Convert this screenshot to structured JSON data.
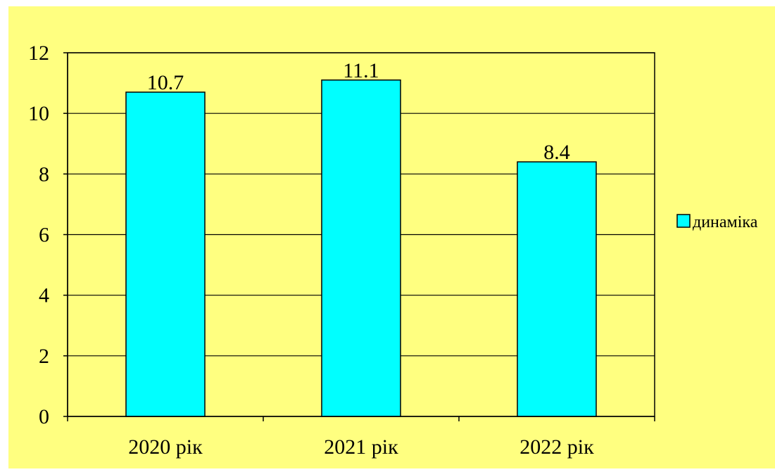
{
  "chart_data": {
    "type": "bar",
    "title": "",
    "xlabel": "",
    "ylabel": "",
    "categories": [
      "2020 рік",
      "2021 рік",
      "2022 рік"
    ],
    "series": [
      {
        "name": "динаміка",
        "values": [
          10.7,
          11.1,
          8.4
        ],
        "color": "#00ffff"
      }
    ],
    "value_labels": [
      "10.7",
      "11.1",
      "8.4"
    ],
    "ylim": [
      0,
      12
    ],
    "yticks": [
      0,
      2,
      4,
      6,
      8,
      10,
      12
    ],
    "grid": true,
    "legend_position": "right",
    "colors": {
      "chart_area": "#ffff80",
      "plot_area": "#ffff80",
      "bar": "#00ffff",
      "outline": "#000000"
    }
  }
}
